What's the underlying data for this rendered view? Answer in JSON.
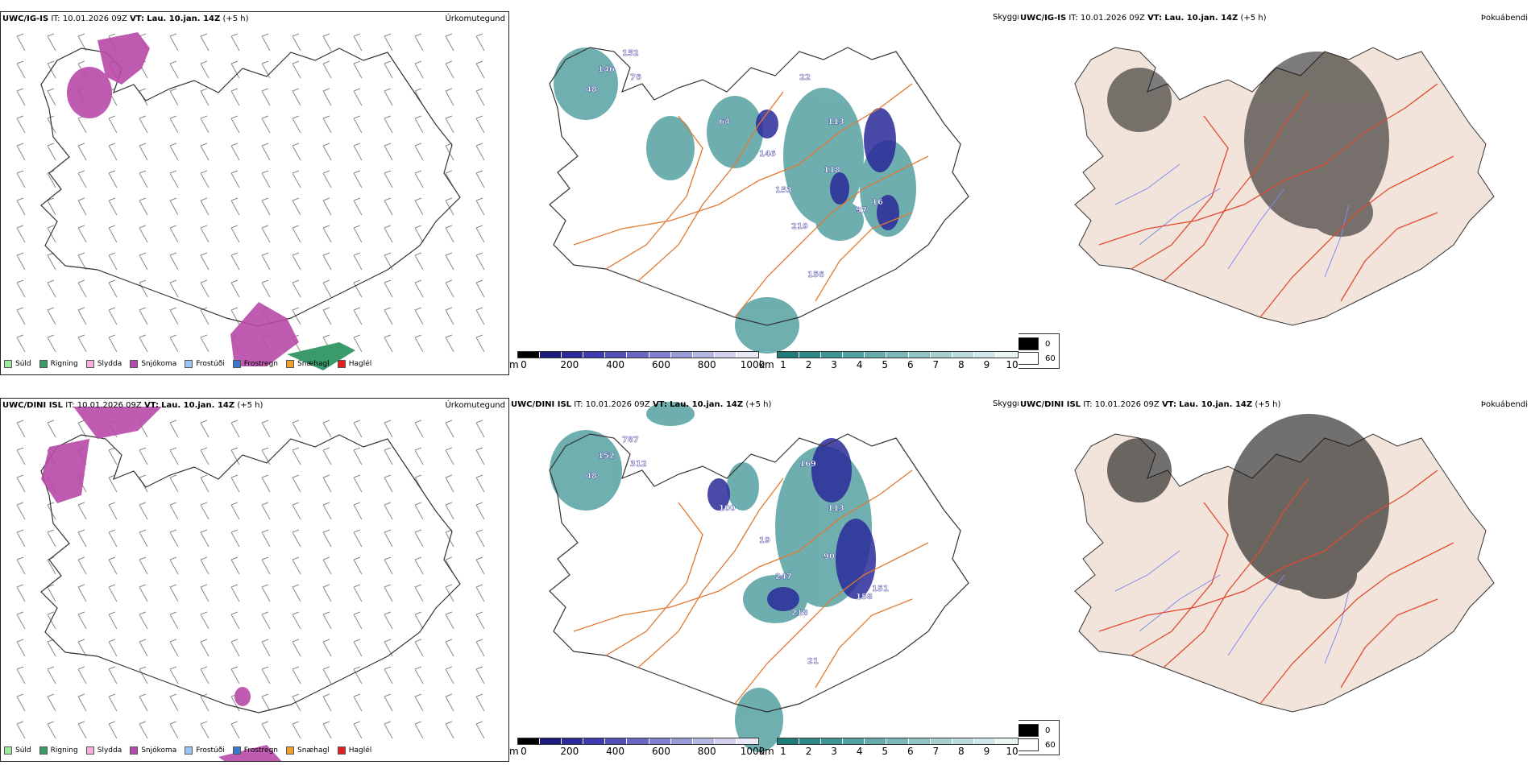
{
  "rows": [
    {
      "model": "UWC/IG-IS",
      "it_label": "IT:",
      "it_value": "10.01.2026 09Z",
      "vt_label": "VT:",
      "vt_value": "Lau. 10.jan. 14Z",
      "lead": "(+5 h)",
      "titles": {
        "precip": "Úrkomutegund",
        "cloud": "Skyggni",
        "fog": "Þokuábendi"
      },
      "cloud_labels": [
        "152",
        "146",
        "76",
        "48",
        "22",
        "64",
        "113",
        "146",
        "118",
        "153",
        "97",
        "16",
        "219",
        "156"
      ],
      "fog_legend": [
        "0",
        "60"
      ]
    },
    {
      "model": "UWC/DINI ISL",
      "it_label": "IT:",
      "it_value": "10.01.2026 09Z",
      "vt_label": "VT:",
      "vt_value": "Lau. 10.jan. 14Z",
      "lead": "(+5 h)",
      "titles": {
        "precip": "Úrkomutegund",
        "cloud": "Skyggni",
        "fog": "Þokuábendi"
      },
      "cloud_labels": [
        "787",
        "152",
        "312",
        "48",
        "169",
        "100",
        "113",
        "19",
        "90",
        "247",
        "158",
        "151",
        "218",
        "21"
      ],
      "fog_legend": [
        "0",
        "60"
      ]
    }
  ],
  "precip_legend": [
    {
      "label": "Súld",
      "color": "#9ee89e"
    },
    {
      "label": "Rigning",
      "color": "#3a9a6a"
    },
    {
      "label": "Slydda",
      "color": "#f4b0d8"
    },
    {
      "label": "Snjókoma",
      "color": "#b84aa8"
    },
    {
      "label": "Frostúði",
      "color": "#9cc4f0"
    },
    {
      "label": "Frostregn",
      "color": "#3a78c8"
    },
    {
      "label": "Snæhagl",
      "color": "#f0a030"
    },
    {
      "label": "Haglél",
      "color": "#e02020"
    }
  ],
  "height_bar": {
    "unit": "m",
    "ticks": [
      "0",
      "200",
      "400",
      "600",
      "800",
      "1000"
    ],
    "colors": [
      "#000000",
      "#1a1a7a",
      "#2a2a9a",
      "#3c3cae",
      "#5050b8",
      "#6868c4",
      "#8080cc",
      "#9a9ad6",
      "#b6b6e2",
      "#d0d0ec",
      "#e8e8f6"
    ]
  },
  "vis_bar": {
    "unit": "km",
    "ticks": [
      "1",
      "2",
      "3",
      "4",
      "5",
      "6",
      "7",
      "8",
      "9",
      "10"
    ],
    "colors": [
      "#1f7a7a",
      "#2e8888",
      "#3f9494",
      "#52a0a0",
      "#66acac",
      "#7ab8b8",
      "#90c4c4",
      "#a6d0d0",
      "#bcdcdc",
      "#d2e8e8",
      "#eaf4f4"
    ]
  },
  "map_colors": {
    "land_fog": "#f2e4da",
    "roads": "#e07a30",
    "roads_fog": "#e04a30",
    "rivers": "#7c8cf0",
    "coast": "#333333",
    "snow": "#b84aa8",
    "rain": "#3a9a6a",
    "vis": "#3f9494",
    "vis_low": "#2a2a9a"
  }
}
